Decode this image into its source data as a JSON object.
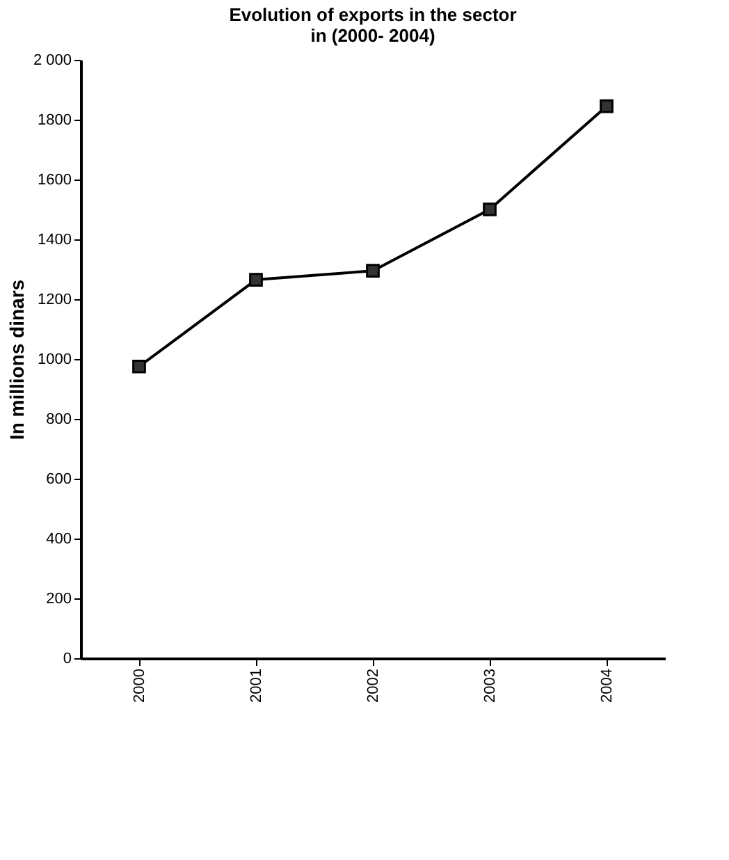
{
  "chart_data": {
    "type": "line",
    "title": "Evolution of exports in the sector\nin (2000- 2004)",
    "ylabel": "In millions dinars",
    "categories": [
      "2000",
      "2001",
      "2002",
      "2003",
      "2004"
    ],
    "series": [
      {
        "color": "#000000",
        "values": [
          975,
          1265,
          1295,
          1500,
          1845
        ]
      }
    ],
    "ylim": [
      0,
      2000
    ],
    "yticks": [
      0,
      200,
      400,
      600,
      800,
      1000,
      1200,
      1400,
      1600,
      1800,
      {
        "value": 2000,
        "label": "2 000"
      }
    ],
    "grid": false,
    "marker": "square",
    "line_style": "solid"
  }
}
